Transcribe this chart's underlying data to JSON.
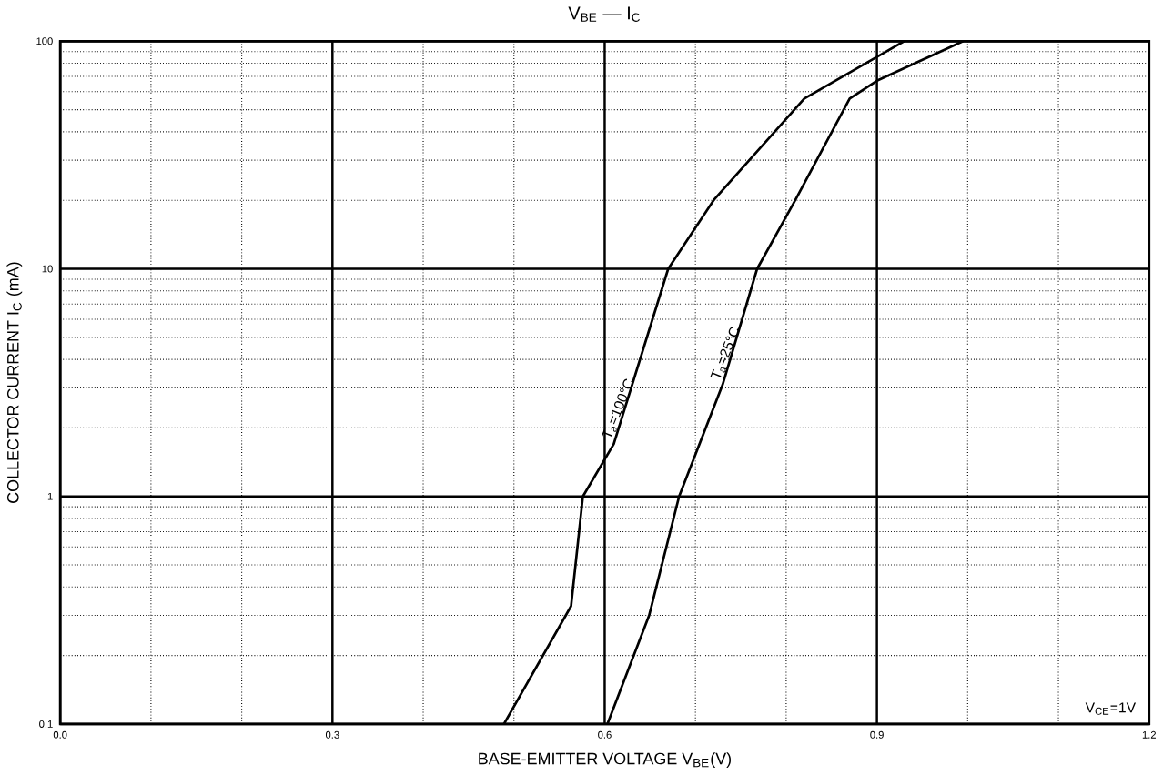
{
  "chart_data": {
    "type": "line",
    "title": "V$_{BE}$ — I$_{C}$",
    "xlabel": "BASE-EMITTER VOLTAGE    V$_{BE}$(V)",
    "ylabel": "COLLECTOR CURRENT    I$_{C}$ (mA)",
    "log": "y",
    "grid": true,
    "marker": "none",
    "line_style": "solid",
    "xlim": [
      0,
      1.2
    ],
    "ylim": [
      0.1,
      100
    ],
    "xticks": [
      {
        "value": 0,
        "label": "0.0"
      },
      0.3,
      0.6,
      0.9,
      {
        "value": 1.2,
        "label": "1.2"
      }
    ],
    "yticks": [
      0.1,
      1,
      10,
      100
    ],
    "series": [
      {
        "color": "#000000",
        "x": [
          0.489,
          0.563,
          0.576,
          0.61,
          0.67,
          0.72,
          0.82,
          0.906,
          0.93
        ],
        "values": [
          0.1,
          0.33,
          1,
          1.7,
          10,
          20,
          56,
          88,
          100
        ]
      },
      {
        "color": "#000000",
        "x": [
          0.603,
          0.649,
          0.682,
          0.73,
          0.768,
          0.81,
          0.87,
          0.9,
          0.995
        ],
        "values": [
          0.1,
          0.3,
          1,
          3.1,
          10,
          20,
          56,
          67,
          100
        ]
      }
    ],
    "annotations": [
      {
        "text": "T$_{a}$=100°C",
        "x": 0.61,
        "y": 1.7
      },
      {
        "text": "T$_{a}$=25°C",
        "x": 0.73,
        "y": 3.1
      },
      "V$_{CE}$=1V"
    ]
  }
}
